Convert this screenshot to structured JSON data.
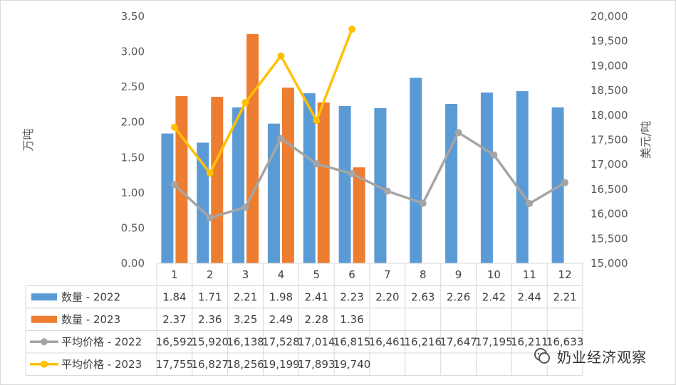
{
  "chart_data": {
    "type": "bar",
    "categories": [
      "1",
      "2",
      "3",
      "4",
      "5",
      "6",
      "7",
      "8",
      "9",
      "10",
      "11",
      "12"
    ],
    "ylabel": "万吨",
    "y2label": "美元/吨",
    "ylim": [
      0,
      3.5
    ],
    "y2lim": [
      15000,
      20000
    ],
    "y_ticks": [
      "0.00",
      "0.50",
      "1.00",
      "1.50",
      "2.00",
      "2.50",
      "3.00",
      "3.50"
    ],
    "y2_ticks": [
      "15,000",
      "15,500",
      "16,000",
      "16,500",
      "17,000",
      "17,500",
      "18,000",
      "18,500",
      "19,000",
      "19,500",
      "20,000"
    ],
    "grid": false,
    "legend": "data-table",
    "bar_series": [
      {
        "name": "数量 - 2022",
        "color": "#5b9bd5",
        "values": [
          1.84,
          1.71,
          2.21,
          1.98,
          2.41,
          2.23,
          2.2,
          2.63,
          2.26,
          2.42,
          2.44,
          2.21
        ],
        "labels": [
          "1.84",
          "1.71",
          "2.21",
          "1.98",
          "2.41",
          "2.23",
          "2.20",
          "2.63",
          "2.26",
          "2.42",
          "2.44",
          "2.21"
        ]
      },
      {
        "name": "数量 - 2023",
        "color": "#ed7d31",
        "values": [
          2.37,
          2.36,
          3.25,
          2.49,
          2.28,
          1.36,
          null,
          null,
          null,
          null,
          null,
          null
        ],
        "labels": [
          "2.37",
          "2.36",
          "3.25",
          "2.49",
          "2.28",
          "1.36",
          "",
          "",
          "",
          "",
          "",
          ""
        ]
      }
    ],
    "line_series": [
      {
        "name": "平均价格 - 2022",
        "color": "#a5a5a5",
        "values": [
          16592,
          15920,
          16138,
          17528,
          17014,
          16815,
          16461,
          16216,
          17647,
          17195,
          16211,
          16633
        ],
        "labels": [
          "16,592",
          "15,920",
          "16,138",
          "17,528",
          "17,014",
          "16,815",
          "16,461",
          "16,216",
          "17,647",
          "17,195",
          "16,211",
          "16,633"
        ]
      },
      {
        "name": "平均价格 - 2023",
        "color": "#ffc000",
        "values": [
          17755,
          16827,
          18256,
          19199,
          17893,
          19740,
          null,
          null,
          null,
          null,
          null,
          null
        ],
        "labels": [
          "17,755",
          "16,827",
          "18,256",
          "19,199",
          "17,893",
          "19,740",
          "",
          "",
          "",
          "",
          "",
          ""
        ]
      }
    ]
  },
  "watermark": {
    "text": "奶业经济观察"
  }
}
